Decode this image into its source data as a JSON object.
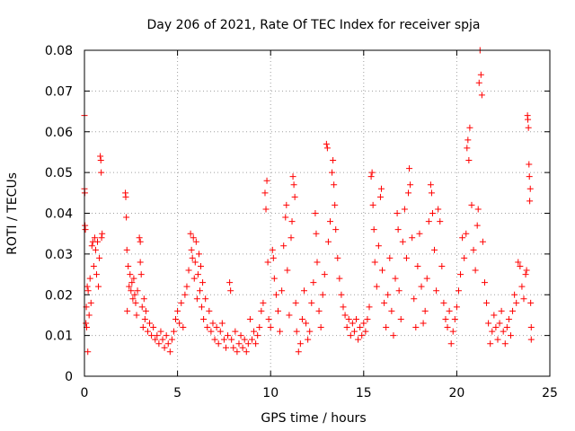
{
  "chart_data": {
    "type": "scatter",
    "title": "Day 206 of 2021, Rate Of TEC Index for receiver spja",
    "xlabel": "GPS time / hours",
    "ylabel": "ROTI / TECUs",
    "xlim": [
      0,
      25
    ],
    "ylim": [
      0,
      0.08
    ],
    "xticks": [
      0,
      5,
      10,
      15,
      20,
      25
    ],
    "xtick_labels": [
      "0",
      "5",
      "10",
      "15",
      "20",
      "25"
    ],
    "yticks": [
      0,
      0.01,
      0.02,
      0.03,
      0.04,
      0.05,
      0.06,
      0.07,
      0.08
    ],
    "ytick_labels": [
      "0",
      "0.01",
      "0.02",
      "0.03",
      "0.04",
      "0.05",
      "0.06",
      "0.07",
      "0.08"
    ],
    "grid": true,
    "marker": "+",
    "color": "#ff0000",
    "series": [
      {
        "name": "ROTI",
        "points": [
          [
            0.0,
            0.064
          ],
          [
            0.0,
            0.046
          ],
          [
            0.02,
            0.045
          ],
          [
            0.03,
            0.037
          ],
          [
            0.05,
            0.036
          ],
          [
            0.08,
            0.013
          ],
          [
            0.1,
            0.017
          ],
          [
            0.12,
            0.012
          ],
          [
            0.15,
            0.022
          ],
          [
            0.18,
            0.006
          ],
          [
            0.2,
            0.021
          ],
          [
            0.25,
            0.015
          ],
          [
            0.3,
            0.024
          ],
          [
            0.35,
            0.018
          ],
          [
            0.4,
            0.032
          ],
          [
            0.45,
            0.033
          ],
          [
            0.5,
            0.027
          ],
          [
            0.55,
            0.034
          ],
          [
            0.6,
            0.031
          ],
          [
            0.65,
            0.025
          ],
          [
            0.7,
            0.033
          ],
          [
            0.75,
            0.022
          ],
          [
            0.8,
            0.029
          ],
          [
            0.85,
            0.054
          ],
          [
            0.88,
            0.053
          ],
          [
            0.9,
            0.05
          ],
          [
            0.92,
            0.034
          ],
          [
            0.95,
            0.035
          ],
          [
            2.2,
            0.045
          ],
          [
            2.22,
            0.044
          ],
          [
            2.25,
            0.039
          ],
          [
            2.28,
            0.031
          ],
          [
            2.3,
            0.016
          ],
          [
            2.35,
            0.027
          ],
          [
            2.4,
            0.022
          ],
          [
            2.45,
            0.025
          ],
          [
            2.5,
            0.021
          ],
          [
            2.55,
            0.023
          ],
          [
            2.6,
            0.019
          ],
          [
            2.65,
            0.024
          ],
          [
            2.7,
            0.02
          ],
          [
            2.75,
            0.018
          ],
          [
            2.8,
            0.015
          ],
          [
            2.85,
            0.021
          ],
          [
            2.95,
            0.034
          ],
          [
            3.0,
            0.033
          ],
          [
            3.0,
            0.028
          ],
          [
            3.05,
            0.025
          ],
          [
            3.1,
            0.017
          ],
          [
            3.15,
            0.012
          ],
          [
            3.2,
            0.019
          ],
          [
            3.25,
            0.014
          ],
          [
            3.3,
            0.016
          ],
          [
            3.4,
            0.011
          ],
          [
            3.5,
            0.013
          ],
          [
            3.6,
            0.01
          ],
          [
            3.7,
            0.012
          ],
          [
            3.8,
            0.009
          ],
          [
            3.9,
            0.01
          ],
          [
            4.0,
            0.008
          ],
          [
            4.1,
            0.011
          ],
          [
            4.2,
            0.009
          ],
          [
            4.3,
            0.007
          ],
          [
            4.4,
            0.01
          ],
          [
            4.5,
            0.008
          ],
          [
            4.6,
            0.006
          ],
          [
            4.7,
            0.009
          ],
          [
            4.8,
            0.011
          ],
          [
            4.9,
            0.014
          ],
          [
            5.0,
            0.016
          ],
          [
            5.1,
            0.013
          ],
          [
            5.2,
            0.018
          ],
          [
            5.3,
            0.012
          ],
          [
            5.4,
            0.02
          ],
          [
            5.5,
            0.022
          ],
          [
            5.6,
            0.026
          ],
          [
            5.7,
            0.035
          ],
          [
            5.75,
            0.031
          ],
          [
            5.8,
            0.029
          ],
          [
            5.85,
            0.034
          ],
          [
            5.9,
            0.024
          ],
          [
            5.95,
            0.028
          ],
          [
            6.0,
            0.033
          ],
          [
            6.05,
            0.019
          ],
          [
            6.1,
            0.025
          ],
          [
            6.15,
            0.03
          ],
          [
            6.2,
            0.021
          ],
          [
            6.25,
            0.027
          ],
          [
            6.3,
            0.017
          ],
          [
            6.35,
            0.023
          ],
          [
            6.4,
            0.014
          ],
          [
            6.5,
            0.019
          ],
          [
            6.6,
            0.012
          ],
          [
            6.7,
            0.016
          ],
          [
            6.8,
            0.011
          ],
          [
            6.9,
            0.013
          ],
          [
            7.0,
            0.009
          ],
          [
            7.1,
            0.012
          ],
          [
            7.2,
            0.008
          ],
          [
            7.3,
            0.011
          ],
          [
            7.4,
            0.013
          ],
          [
            7.5,
            0.009
          ],
          [
            7.6,
            0.007
          ],
          [
            7.7,
            0.01
          ],
          [
            7.8,
            0.023
          ],
          [
            7.85,
            0.021
          ],
          [
            7.9,
            0.009
          ],
          [
            8.0,
            0.007
          ],
          [
            8.1,
            0.011
          ],
          [
            8.2,
            0.006
          ],
          [
            8.3,
            0.008
          ],
          [
            8.4,
            0.01
          ],
          [
            8.5,
            0.007
          ],
          [
            8.6,
            0.009
          ],
          [
            8.7,
            0.006
          ],
          [
            8.8,
            0.008
          ],
          [
            8.9,
            0.014
          ],
          [
            9.0,
            0.009
          ],
          [
            9.1,
            0.011
          ],
          [
            9.2,
            0.008
          ],
          [
            9.3,
            0.01
          ],
          [
            9.4,
            0.012
          ],
          [
            9.5,
            0.016
          ],
          [
            9.6,
            0.018
          ],
          [
            9.7,
            0.045
          ],
          [
            9.75,
            0.041
          ],
          [
            9.8,
            0.048
          ],
          [
            9.85,
            0.028
          ],
          [
            9.9,
            0.014
          ],
          [
            10.0,
            0.012
          ],
          [
            10.1,
            0.031
          ],
          [
            10.15,
            0.029
          ],
          [
            10.2,
            0.024
          ],
          [
            10.3,
            0.02
          ],
          [
            10.4,
            0.016
          ],
          [
            10.5,
            0.011
          ],
          [
            10.6,
            0.021
          ],
          [
            10.7,
            0.032
          ],
          [
            10.8,
            0.039
          ],
          [
            10.85,
            0.042
          ],
          [
            10.9,
            0.026
          ],
          [
            11.0,
            0.015
          ],
          [
            11.1,
            0.034
          ],
          [
            11.15,
            0.038
          ],
          [
            11.2,
            0.049
          ],
          [
            11.25,
            0.047
          ],
          [
            11.3,
            0.044
          ],
          [
            11.35,
            0.018
          ],
          [
            11.4,
            0.011
          ],
          [
            11.5,
            0.006
          ],
          [
            11.6,
            0.008
          ],
          [
            11.7,
            0.014
          ],
          [
            11.8,
            0.021
          ],
          [
            11.9,
            0.013
          ],
          [
            12.0,
            0.009
          ],
          [
            12.1,
            0.011
          ],
          [
            12.2,
            0.018
          ],
          [
            12.3,
            0.023
          ],
          [
            12.4,
            0.04
          ],
          [
            12.45,
            0.035
          ],
          [
            12.5,
            0.028
          ],
          [
            12.6,
            0.016
          ],
          [
            12.7,
            0.012
          ],
          [
            12.8,
            0.02
          ],
          [
            12.9,
            0.025
          ],
          [
            13.0,
            0.057
          ],
          [
            13.05,
            0.056
          ],
          [
            13.1,
            0.033
          ],
          [
            13.2,
            0.038
          ],
          [
            13.3,
            0.05
          ],
          [
            13.35,
            0.053
          ],
          [
            13.4,
            0.047
          ],
          [
            13.45,
            0.042
          ],
          [
            13.5,
            0.036
          ],
          [
            13.6,
            0.029
          ],
          [
            13.7,
            0.024
          ],
          [
            13.8,
            0.02
          ],
          [
            13.9,
            0.017
          ],
          [
            14.0,
            0.015
          ],
          [
            14.1,
            0.012
          ],
          [
            14.2,
            0.014
          ],
          [
            14.3,
            0.01
          ],
          [
            14.4,
            0.013
          ],
          [
            14.5,
            0.011
          ],
          [
            14.6,
            0.014
          ],
          [
            14.7,
            0.009
          ],
          [
            14.8,
            0.012
          ],
          [
            14.9,
            0.01
          ],
          [
            15.0,
            0.013
          ],
          [
            15.1,
            0.011
          ],
          [
            15.2,
            0.014
          ],
          [
            15.3,
            0.017
          ],
          [
            15.4,
            0.049
          ],
          [
            15.45,
            0.05
          ],
          [
            15.5,
            0.042
          ],
          [
            15.55,
            0.036
          ],
          [
            15.6,
            0.028
          ],
          [
            15.7,
            0.022
          ],
          [
            15.8,
            0.032
          ],
          [
            15.9,
            0.044
          ],
          [
            15.95,
            0.046
          ],
          [
            16.0,
            0.026
          ],
          [
            16.1,
            0.018
          ],
          [
            16.2,
            0.012
          ],
          [
            16.3,
            0.02
          ],
          [
            16.4,
            0.029
          ],
          [
            16.5,
            0.016
          ],
          [
            16.6,
            0.01
          ],
          [
            16.7,
            0.024
          ],
          [
            16.8,
            0.04
          ],
          [
            16.85,
            0.036
          ],
          [
            16.9,
            0.021
          ],
          [
            17.0,
            0.014
          ],
          [
            17.1,
            0.033
          ],
          [
            17.2,
            0.041
          ],
          [
            17.3,
            0.029
          ],
          [
            17.4,
            0.045
          ],
          [
            17.45,
            0.051
          ],
          [
            17.5,
            0.047
          ],
          [
            17.6,
            0.034
          ],
          [
            17.7,
            0.019
          ],
          [
            17.8,
            0.012
          ],
          [
            17.9,
            0.027
          ],
          [
            18.0,
            0.035
          ],
          [
            18.1,
            0.022
          ],
          [
            18.2,
            0.013
          ],
          [
            18.3,
            0.016
          ],
          [
            18.4,
            0.024
          ],
          [
            18.5,
            0.038
          ],
          [
            18.6,
            0.047
          ],
          [
            18.65,
            0.045
          ],
          [
            18.7,
            0.04
          ],
          [
            18.8,
            0.031
          ],
          [
            18.9,
            0.021
          ],
          [
            19.0,
            0.041
          ],
          [
            19.1,
            0.038
          ],
          [
            19.2,
            0.027
          ],
          [
            19.3,
            0.018
          ],
          [
            19.4,
            0.014
          ],
          [
            19.5,
            0.012
          ],
          [
            19.6,
            0.016
          ],
          [
            19.7,
            0.008
          ],
          [
            19.8,
            0.011
          ],
          [
            19.9,
            0.014
          ],
          [
            20.0,
            0.017
          ],
          [
            20.1,
            0.021
          ],
          [
            20.2,
            0.025
          ],
          [
            20.3,
            0.034
          ],
          [
            20.4,
            0.029
          ],
          [
            20.5,
            0.035
          ],
          [
            20.55,
            0.056
          ],
          [
            20.6,
            0.058
          ],
          [
            20.65,
            0.053
          ],
          [
            20.7,
            0.061
          ],
          [
            20.8,
            0.042
          ],
          [
            20.9,
            0.031
          ],
          [
            21.0,
            0.026
          ],
          [
            21.1,
            0.037
          ],
          [
            21.15,
            0.041
          ],
          [
            21.2,
            0.072
          ],
          [
            21.25,
            0.08
          ],
          [
            21.3,
            0.074
          ],
          [
            21.35,
            0.069
          ],
          [
            21.4,
            0.033
          ],
          [
            21.5,
            0.023
          ],
          [
            21.6,
            0.018
          ],
          [
            21.7,
            0.013
          ],
          [
            21.8,
            0.008
          ],
          [
            21.9,
            0.011
          ],
          [
            22.0,
            0.015
          ],
          [
            22.1,
            0.012
          ],
          [
            22.2,
            0.009
          ],
          [
            22.3,
            0.013
          ],
          [
            22.4,
            0.016
          ],
          [
            22.5,
            0.011
          ],
          [
            22.6,
            0.008
          ],
          [
            22.7,
            0.012
          ],
          [
            22.8,
            0.014
          ],
          [
            22.9,
            0.01
          ],
          [
            23.0,
            0.016
          ],
          [
            23.1,
            0.02
          ],
          [
            23.2,
            0.018
          ],
          [
            23.3,
            0.028
          ],
          [
            23.4,
            0.027
          ],
          [
            23.5,
            0.022
          ],
          [
            23.6,
            0.019
          ],
          [
            23.7,
            0.025
          ],
          [
            23.75,
            0.026
          ],
          [
            23.8,
            0.064
          ],
          [
            23.82,
            0.063
          ],
          [
            23.85,
            0.061
          ],
          [
            23.88,
            0.052
          ],
          [
            23.9,
            0.049
          ],
          [
            23.92,
            0.043
          ],
          [
            23.95,
            0.046
          ],
          [
            23.97,
            0.018
          ],
          [
            24.0,
            0.012
          ],
          [
            24.0,
            0.009
          ]
        ]
      }
    ]
  }
}
